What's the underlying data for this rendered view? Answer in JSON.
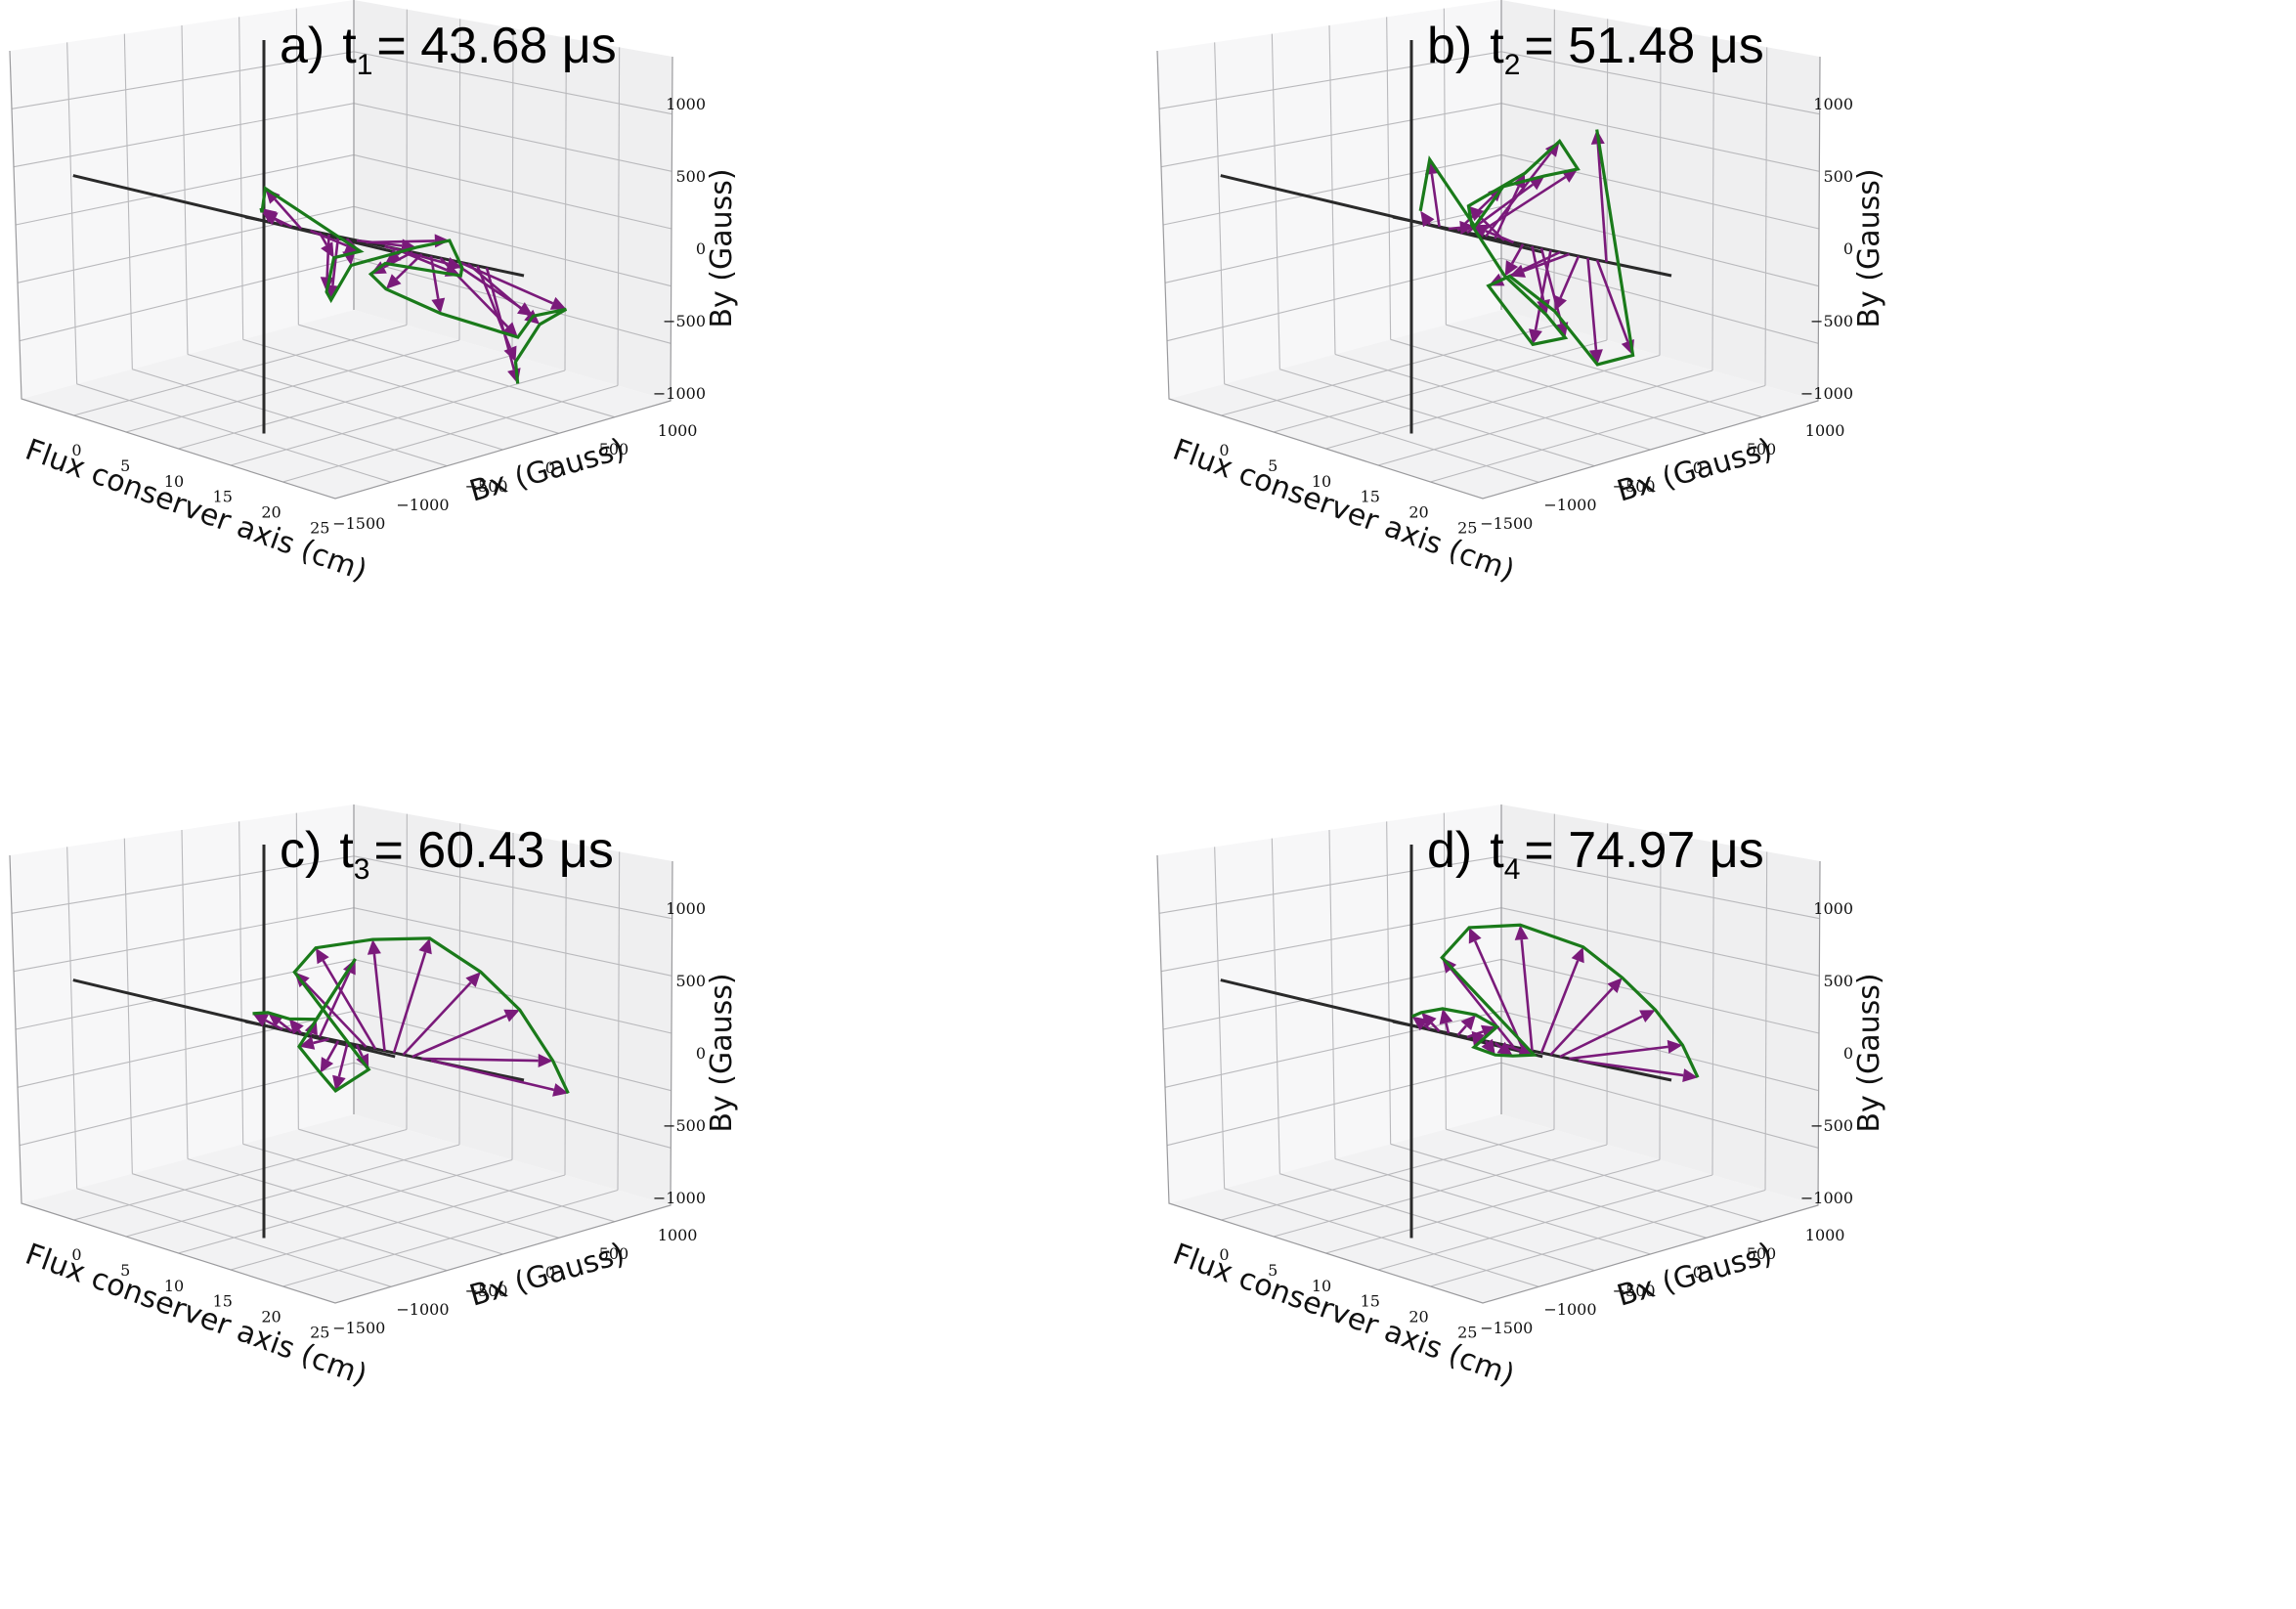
{
  "figure": {
    "panels": [
      {
        "label": "a)",
        "time_label": "t",
        "time_index": "1",
        "time_value": "= 43.68 μs"
      },
      {
        "label": "b)",
        "time_label": "t",
        "time_index": "2",
        "time_value": "= 51.48 μs"
      },
      {
        "label": "c)",
        "time_label": "t",
        "time_index": "3",
        "time_value": "= 60.43 μs"
      },
      {
        "label": "d)",
        "time_label": "t",
        "time_index": "4",
        "time_value": "= 74.97 μs"
      }
    ],
    "axes": {
      "x_label": "Flux conserver axis (cm)",
      "bx_label": "Bx (Gauss)",
      "by_label": "By (Gauss)",
      "x_ticks": [
        "0",
        "5",
        "10",
        "15",
        "20",
        "25"
      ],
      "bx_ticks": [
        "−1500",
        "−1000",
        "−500",
        "0",
        "500",
        "1000"
      ],
      "by_ticks": [
        "−1000",
        "−500",
        "0",
        "500",
        "1000"
      ]
    },
    "colors": {
      "arrow": "#7a1a7a",
      "envelope": "#1a7a1a",
      "reference": "#2a2a2a"
    }
  },
  "chart_data": [
    {
      "type": "quiver3d",
      "title": "a)  t1 = 43.68 μs",
      "xlabel": "Flux conserver axis (cm)",
      "bxlabel": "Bx (Gauss)",
      "bylabel": "By (Gauss)",
      "xlim": [
        0,
        28
      ],
      "bxlim": [
        -1500,
        1200
      ],
      "bylim": [
        -1100,
        1100
      ],
      "z": [
        2,
        3,
        4,
        5,
        6,
        7,
        8,
        9,
        10,
        11,
        13,
        14,
        15,
        16,
        17,
        18,
        19,
        20,
        21,
        22,
        23,
        24
      ],
      "bx": [
        -180,
        -250,
        -300,
        420,
        120,
        -20,
        -60,
        30,
        500,
        700,
        650,
        560,
        -150,
        -350,
        -300,
        80,
        650,
        700,
        900,
        600,
        320,
        260
      ],
      "by": [
        80,
        50,
        220,
        -60,
        -150,
        -400,
        -450,
        -180,
        50,
        150,
        -20,
        -80,
        -120,
        -220,
        -300,
        -380,
        -420,
        -250,
        -150,
        -300,
        -600,
        -750
      ]
    },
    {
      "type": "quiver3d",
      "title": "b) t2 = 51.48 μs",
      "xlabel": "Flux conserver axis (cm)",
      "bxlabel": "Bx (Gauss)",
      "bylabel": "By (Gauss)",
      "xlim": [
        0,
        28
      ],
      "bxlim": [
        -1500,
        1200
      ],
      "bylim": [
        -1100,
        1100
      ],
      "z": [
        2,
        3,
        4,
        5,
        6,
        7,
        8,
        9,
        10,
        11,
        12,
        13,
        14,
        15,
        16,
        17,
        18,
        19,
        20,
        21
      ],
      "bx": [
        -80,
        -80,
        220,
        380,
        650,
        850,
        620,
        250,
        -300,
        -350,
        -150,
        120,
        200,
        -150,
        -600,
        -500,
        -200,
        80,
        300,
        -80
      ],
      "by": [
        80,
        450,
        60,
        380,
        520,
        620,
        780,
        500,
        180,
        50,
        -250,
        -450,
        -580,
        -680,
        -350,
        -250,
        -420,
        -720,
        -600,
        900
      ]
    },
    {
      "type": "quiver3d",
      "title": "c) t3 = 60.43 μs",
      "xlabel": "Flux conserver axis (cm)",
      "bxlabel": "Bx (Gauss)",
      "bylabel": "By (Gauss)",
      "xlim": [
        0,
        28
      ],
      "bxlim": [
        -1500,
        1200
      ],
      "bylim": [
        -1100,
        1100
      ],
      "z": [
        2,
        3,
        4,
        5,
        6,
        7,
        8,
        9,
        10,
        11,
        12,
        13,
        14,
        15,
        16,
        17,
        18
      ],
      "bx": [
        -250,
        -200,
        -100,
        50,
        300,
        -250,
        -150,
        -100,
        100,
        -600,
        -500,
        -100,
        300,
        650,
        900,
        1100,
        1150
      ],
      "by": [
        60,
        90,
        80,
        120,
        600,
        -100,
        -250,
        -350,
        -150,
        400,
        600,
        750,
        850,
        700,
        500,
        200,
        0
      ],
      "envelope_open": true
    },
    {
      "type": "quiver3d",
      "title": "d) t4 = 74.97 μs",
      "xlabel": "Flux conserver axis (cm)",
      "bxlabel": "Bx (Gauss)",
      "bylabel": "By (Gauss)",
      "xlim": [
        0,
        28
      ],
      "bxlim": [
        -1500,
        1200
      ],
      "bylim": [
        -1100,
        1100
      ],
      "z": [
        2,
        3,
        4,
        5,
        6,
        7,
        8,
        9,
        10,
        11,
        12,
        13,
        14,
        15,
        16,
        17,
        18
      ],
      "bx": [
        -150,
        -150,
        -50,
        150,
        250,
        -20,
        80,
        150,
        250,
        -600,
        -450,
        -100,
        350,
        600,
        800,
        950,
        1000
      ],
      "by": [
        60,
        100,
        160,
        170,
        120,
        -60,
        -80,
        -60,
        -20,
        500,
        750,
        850,
        800,
        650,
        480,
        280,
        80
      ],
      "envelope_open": true
    }
  ]
}
